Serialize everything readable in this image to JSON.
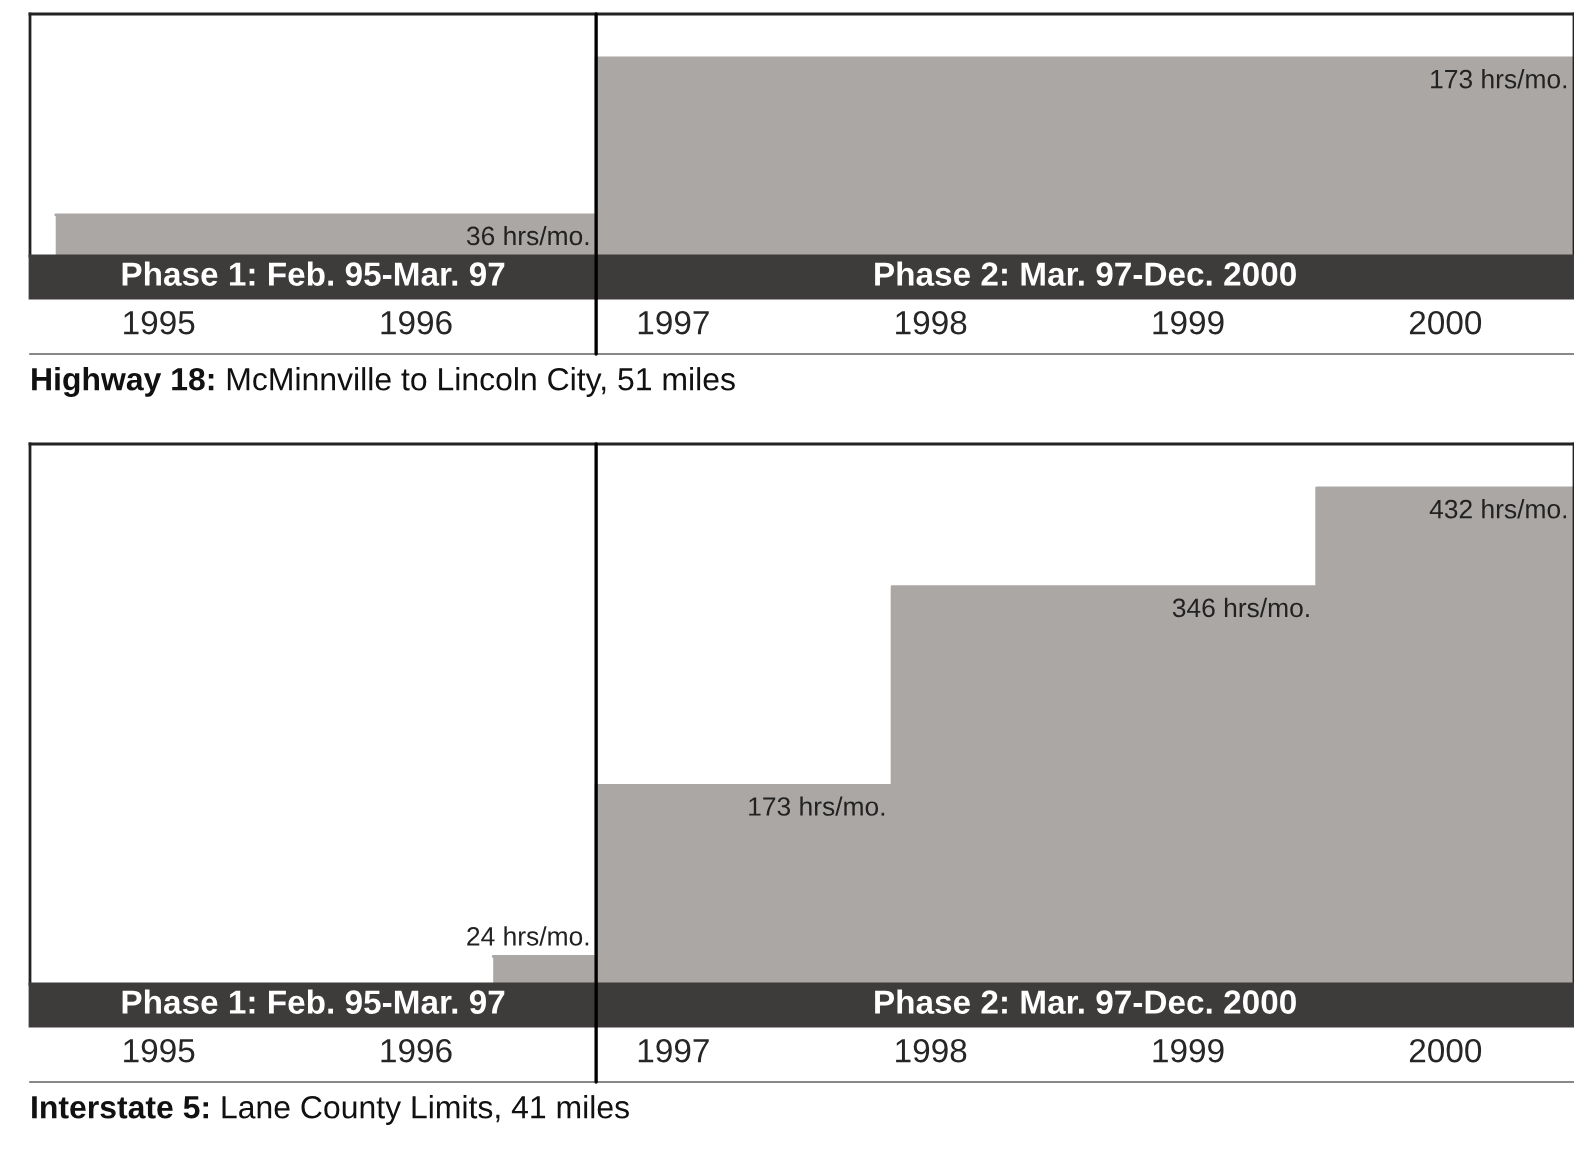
{
  "chart_data": [
    {
      "type": "area",
      "title": "Highway 18:",
      "subtitle": "McMinnville to Lincoln City, 51 miles",
      "x": [
        1995.1,
        1997.2,
        1997.2,
        2001
      ],
      "values": [
        36,
        36,
        173,
        173
      ],
      "value_labels": [
        null,
        "36 hrs/mo.",
        null,
        "173 hrs/mo."
      ],
      "color": "#aaa7a5",
      "xlim": [
        1995,
        2001
      ],
      "xticks": [
        {
          "value": 1995.5,
          "label": "1995"
        },
        {
          "value": 1996.5,
          "label": "1996"
        },
        {
          "value": 1997.5,
          "label": "1997"
        },
        {
          "value": 1998.5,
          "label": "1998"
        },
        {
          "value": 1999.5,
          "label": "1999"
        },
        {
          "value": 2000.5,
          "label": "2000"
        }
      ],
      "tick_labels": "x",
      "ref_lines": [
        {
          "axis": "x",
          "value": 1997.2,
          "color": "#000000"
        }
      ],
      "annotations": [
        "Phase 1: Feb. 95-Mar. 97",
        "Phase 2: Mar. 97-Dec. 2000"
      ]
    },
    {
      "type": "area",
      "title": "Interstate 5:",
      "subtitle": "Lane County Limits, 41 miles",
      "x": [
        1996.8,
        1997.2,
        1997.2,
        1998.35,
        1998.35,
        2000.0,
        2000.0,
        2001
      ],
      "values": [
        24,
        24,
        173,
        173,
        346,
        346,
        432,
        432
      ],
      "value_labels": [
        null,
        "24 hrs/mo.",
        null,
        "173 hrs/mo.",
        null,
        "346 hrs/mo.",
        null,
        "432 hrs/mo."
      ],
      "color": "#aaa7a5",
      "xlim": [
        1995,
        2001
      ],
      "xticks": [
        {
          "value": 1995.5,
          "label": "1995"
        },
        {
          "value": 1996.5,
          "label": "1996"
        },
        {
          "value": 1997.5,
          "label": "1997"
        },
        {
          "value": 1998.5,
          "label": "1998"
        },
        {
          "value": 1999.5,
          "label": "1999"
        },
        {
          "value": 2000.5,
          "label": "2000"
        }
      ],
      "tick_labels": "x",
      "ref_lines": [
        {
          "axis": "x",
          "value": 1997.2,
          "color": "#000000"
        }
      ],
      "annotations": [
        "Phase 1: Feb. 95-Mar. 97",
        "Phase 2: Mar. 97-Dec. 2000"
      ]
    }
  ]
}
